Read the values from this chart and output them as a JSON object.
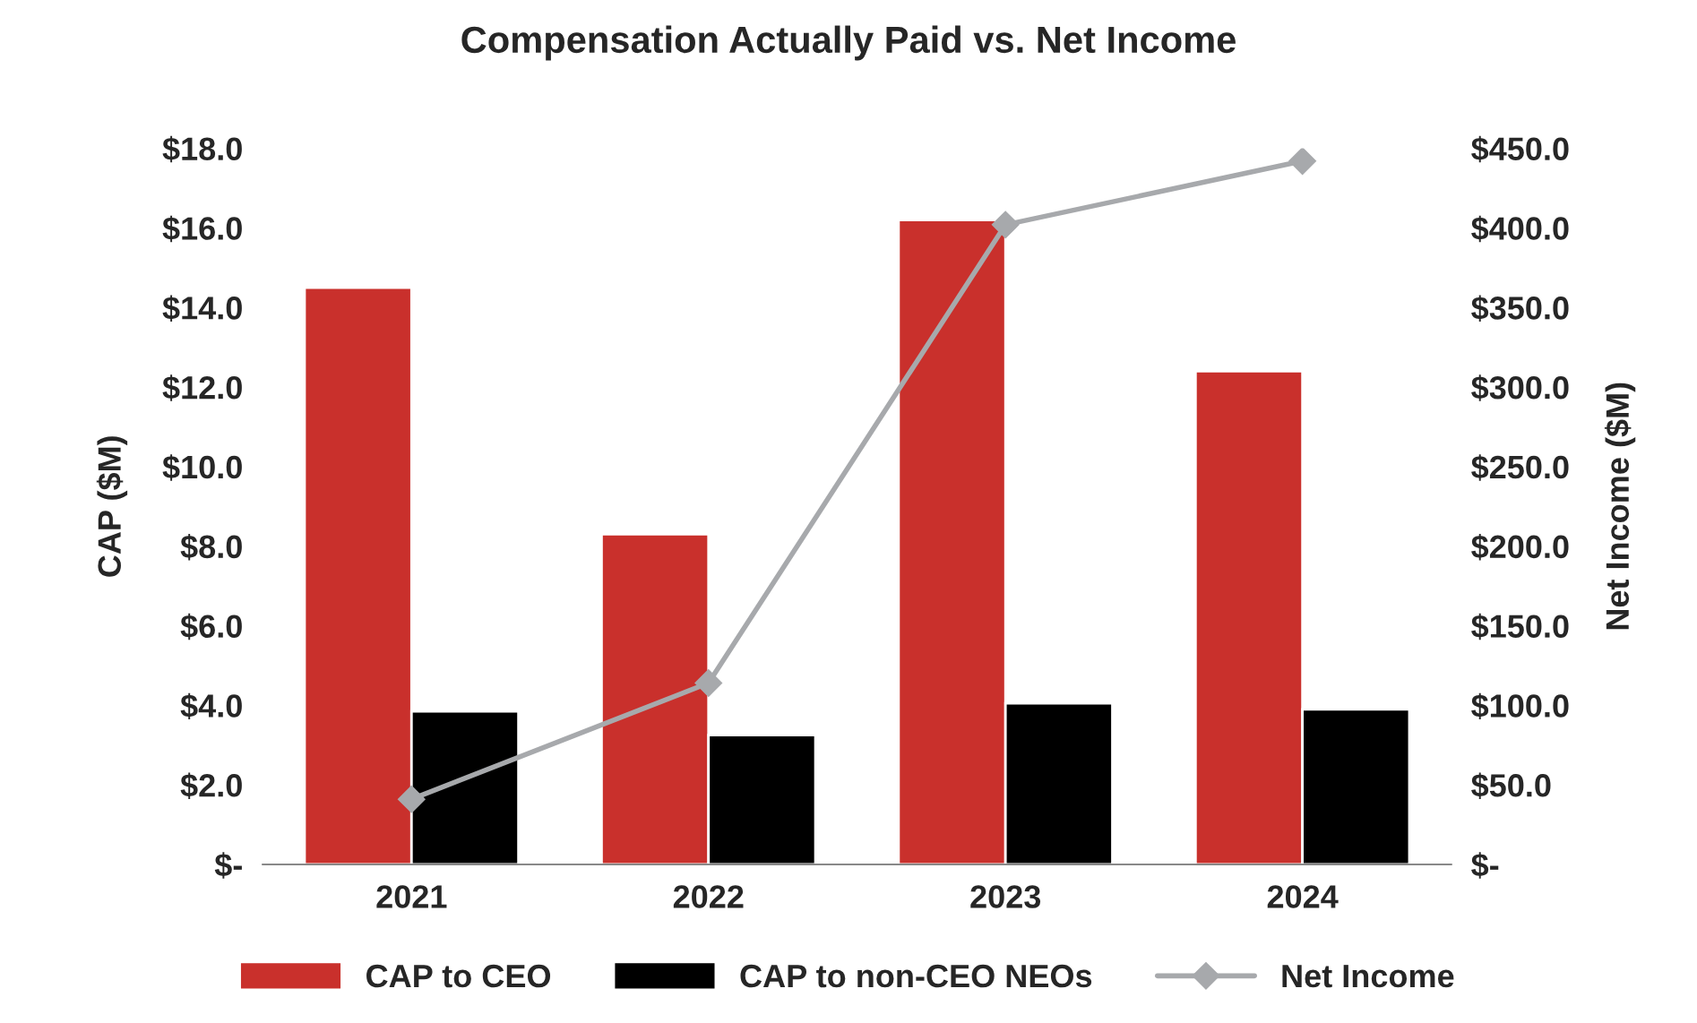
{
  "chart_data": {
    "type": "bar",
    "title": "Compensation Actually Paid vs. Net Income",
    "categories": [
      "2021",
      "2022",
      "2023",
      "2024"
    ],
    "series": [
      {
        "name": "CAP to CEO",
        "color": "#c9302c",
        "values": [
          14.5,
          8.3,
          16.2,
          12.4
        ]
      },
      {
        "name": "CAP to non-CEO NEOs",
        "color": "#000000",
        "values": [
          3.85,
          3.25,
          4.05,
          3.9
        ]
      },
      {
        "name": "Net Income",
        "type": "line",
        "axis": "y2",
        "color": "#a7a9ac",
        "marker": "diamond",
        "values": [
          41,
          114,
          402,
          442
        ]
      }
    ],
    "ylabel": "CAP ($M)",
    "y2label": "Net Income ($M)",
    "ylim": [
      0,
      18
    ],
    "yticks": [
      {
        "value": 0,
        "label": "$-"
      },
      {
        "value": 2,
        "label": "$2.0"
      },
      {
        "value": 4,
        "label": "$4.0"
      },
      {
        "value": 6,
        "label": "$6.0"
      },
      {
        "value": 8,
        "label": "$8.0"
      },
      {
        "value": 10,
        "label": "$10.0"
      },
      {
        "value": 12,
        "label": "$12.0"
      },
      {
        "value": 14,
        "label": "$14.0"
      },
      {
        "value": 16,
        "label": "$16.0"
      },
      {
        "value": 18,
        "label": "$18.0"
      }
    ],
    "y2lim": [
      0,
      450
    ],
    "y2ticks": [
      {
        "value": 0,
        "label": "$-"
      },
      {
        "value": 50,
        "label": "$50.0"
      },
      {
        "value": 100,
        "label": "$100.0"
      },
      {
        "value": 150,
        "label": "$150.0"
      },
      {
        "value": 200,
        "label": "$200.0"
      },
      {
        "value": 250,
        "label": "$250.0"
      },
      {
        "value": 300,
        "label": "$300.0"
      },
      {
        "value": 350,
        "label": "$350.0"
      },
      {
        "value": 400,
        "label": "$400.0"
      },
      {
        "value": 450,
        "label": "$450.0"
      }
    ],
    "grid": false,
    "legend": "bottom"
  }
}
